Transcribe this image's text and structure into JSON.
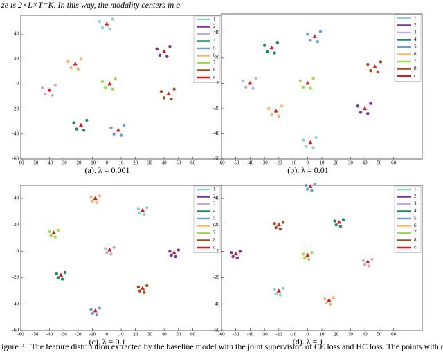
{
  "header_text": "ze is 2×L×T=K. In this way, the modality centers in a",
  "figure_caption": "igure 3 .  The feature distribution extracted by the baseline model with the joint supervision of CE loss and HC loss. The points with different colors s",
  "chart_data": [
    {
      "type": "scatter",
      "caption": "(a).  λ = 0.001",
      "xlim": [
        -60,
        80
      ],
      "ylim": [
        -60,
        55
      ],
      "xticks": [
        -60,
        -50,
        -40,
        -30,
        -20,
        -10,
        0,
        10,
        20,
        30,
        40,
        50,
        60
      ],
      "yticks": [
        -60,
        -40,
        -20,
        0,
        20,
        40
      ],
      "series": [
        {
          "name": "1",
          "color": "#8fd3c8",
          "x": [
            -5,
            4,
            2,
            -3
          ],
          "y": [
            50,
            52,
            44,
            45
          ]
        },
        {
          "name": "2",
          "color": "#7b3294",
          "x": [
            35,
            44,
            42,
            37
          ],
          "y": [
            28,
            30,
            22,
            23
          ]
        },
        {
          "name": "3",
          "color": "#c2b0d8",
          "x": [
            -45,
            -36,
            -38,
            -43
          ],
          "y": [
            -3,
            -1,
            -9,
            -8
          ]
        },
        {
          "name": "4",
          "color": "#1b8a5a",
          "x": [
            -23,
            -14,
            -16,
            -21
          ],
          "y": [
            -31,
            -29,
            -37,
            -36
          ]
        },
        {
          "name": "5",
          "color": "#6f9fd0",
          "x": [
            3,
            12,
            10,
            5
          ],
          "y": [
            -35,
            -33,
            -41,
            -40
          ]
        },
        {
          "name": "6",
          "color": "#fbb46a",
          "x": [
            -27,
            -18,
            -20,
            -25
          ],
          "y": [
            18,
            20,
            12,
            13
          ]
        },
        {
          "name": "7",
          "color": "#a6d854",
          "x": [
            -3,
            6,
            4,
            -1
          ],
          "y": [
            2,
            4,
            -4,
            -3
          ]
        },
        {
          "name": "8",
          "color": "#9c4f1c",
          "x": [
            38,
            47,
            45,
            40
          ],
          "y": [
            -6,
            -4,
            -12,
            -11
          ]
        },
        {
          "name": "c",
          "color": "#e8141c",
          "x": [
            0,
            40,
            -40,
            -18,
            8,
            -22,
            2,
            43
          ],
          "y": [
            48,
            26,
            -5,
            -33,
            -37,
            16,
            0,
            -8
          ]
        }
      ]
    },
    {
      "type": "scatter",
      "caption": "(b).  λ = 0.01",
      "xlim": [
        -60,
        80
      ],
      "ylim": [
        -60,
        55
      ],
      "xticks": [
        -60,
        -50,
        -40,
        -30,
        -20,
        -10,
        0,
        10,
        20,
        30,
        40,
        50,
        60
      ],
      "yticks": [
        -60,
        -40,
        -20,
        0,
        20,
        40
      ],
      "series": [
        {
          "name": "1",
          "color": "#8fd3c8",
          "x": [
            -3,
            6,
            4,
            -1
          ],
          "y": [
            -45,
            -43,
            -51,
            -50
          ]
        },
        {
          "name": "2",
          "color": "#7b3294",
          "x": [
            35,
            44,
            42,
            37
          ],
          "y": [
            -18,
            -16,
            -24,
            -23
          ]
        },
        {
          "name": "3",
          "color": "#c2b0d8",
          "x": [
            -45,
            -36,
            -38,
            -43
          ],
          "y": [
            2,
            4,
            -4,
            -3
          ]
        },
        {
          "name": "4",
          "color": "#1b8a5a",
          "x": [
            -30,
            -21,
            -23,
            -28
          ],
          "y": [
            30,
            32,
            24,
            25
          ]
        },
        {
          "name": "5",
          "color": "#6f9fd0",
          "x": [
            0,
            9,
            7,
            2
          ],
          "y": [
            39,
            41,
            33,
            34
          ]
        },
        {
          "name": "6",
          "color": "#fbb46a",
          "x": [
            -27,
            -18,
            -20,
            -25
          ],
          "y": [
            -20,
            -18,
            -26,
            -25
          ]
        },
        {
          "name": "7",
          "color": "#a6d854",
          "x": [
            -5,
            4,
            2,
            -3
          ],
          "y": [
            2,
            4,
            -4,
            -3
          ]
        },
        {
          "name": "8",
          "color": "#9c4f1c",
          "x": [
            42,
            51,
            49,
            44
          ],
          "y": [
            15,
            17,
            9,
            10
          ]
        },
        {
          "name": "c",
          "color": "#e8141c",
          "x": [
            2,
            40,
            -40,
            -25,
            5,
            -22,
            0,
            47
          ],
          "y": [
            -47,
            -20,
            0,
            28,
            37,
            -22,
            0,
            13
          ]
        }
      ]
    },
    {
      "type": "scatter",
      "caption": "(c).  λ = 0.1",
      "xlim": [
        -60,
        80
      ],
      "ylim": [
        -60,
        50
      ],
      "xticks": [
        -60,
        -50,
        -40,
        -30,
        -20,
        -10,
        0,
        10,
        20,
        30,
        40,
        50,
        60
      ],
      "yticks": [
        -60,
        -40,
        -20,
        0,
        20,
        40
      ],
      "series": [
        {
          "name": "1",
          "color": "#8fd3c8",
          "x": [
            22,
            28,
            26,
            23
          ],
          "y": [
            32,
            33,
            28,
            29
          ]
        },
        {
          "name": "2",
          "color": "#7b3294",
          "x": [
            44,
            50,
            48,
            45
          ],
          "y": [
            0,
            1,
            -4,
            -3
          ]
        },
        {
          "name": "3",
          "color": "#c2b0d8",
          "x": [
            -1,
            5,
            3,
            0
          ],
          "y": [
            2,
            3,
            -2,
            -1
          ]
        },
        {
          "name": "4",
          "color": "#1b8a5a",
          "x": [
            -35,
            -29,
            -31,
            -34
          ],
          "y": [
            -17,
            -16,
            -21,
            -20
          ]
        },
        {
          "name": "5",
          "color": "#6f9fd0",
          "x": [
            -11,
            -5,
            -7,
            -10
          ],
          "y": [
            -44,
            -43,
            -48,
            -47
          ]
        },
        {
          "name": "6",
          "color": "#fbb46a",
          "x": [
            -11,
            -5,
            -7,
            -10
          ],
          "y": [
            41,
            42,
            37,
            38
          ]
        },
        {
          "name": "7",
          "color": "#a6d854",
          "x": [
            -40,
            -34,
            -36,
            -39
          ],
          "y": [
            15,
            16,
            11,
            12
          ]
        },
        {
          "name": "8",
          "color": "#9c4f1c",
          "x": [
            22,
            28,
            26,
            23
          ],
          "y": [
            -27,
            -26,
            -31,
            -30
          ]
        },
        {
          "name": "c",
          "color": "#e8141c",
          "x": [
            25,
            47,
            2,
            -32,
            -8,
            -8,
            -37,
            25
          ],
          "y": [
            31,
            -1,
            1,
            -18,
            -45,
            40,
            14,
            -28
          ]
        }
      ]
    },
    {
      "type": "scatter",
      "caption": "(d).  λ = 1",
      "xlim": [
        -60,
        80
      ],
      "ylim": [
        -60,
        50
      ],
      "xticks": [
        -60,
        -50,
        -40,
        -30,
        -20,
        -10,
        0,
        10,
        20,
        30,
        40,
        50,
        60
      ],
      "yticks": [
        -60,
        -40,
        -20,
        0,
        20,
        40
      ],
      "series": [
        {
          "name": "1",
          "color": "#8fd3c8",
          "x": [
            -23,
            -17,
            -19,
            -22
          ],
          "y": [
            -29,
            -28,
            -33,
            -32
          ]
        },
        {
          "name": "2",
          "color": "#7b3294",
          "x": [
            -53,
            -47,
            -49,
            -52
          ],
          "y": [
            -1,
            0,
            -5,
            -4
          ]
        },
        {
          "name": "3",
          "color": "#c2b0d8",
          "x": [
            39,
            45,
            43,
            40
          ],
          "y": [
            -7,
            -6,
            -11,
            -10
          ]
        },
        {
          "name": "4",
          "color": "#1b8a5a",
          "x": [
            19,
            25,
            23,
            20
          ],
          "y": [
            23,
            24,
            19,
            20
          ]
        },
        {
          "name": "5",
          "color": "#6f9fd0",
          "x": [
            -1,
            5,
            3,
            0
          ],
          "y": [
            50,
            51,
            46,
            47
          ]
        },
        {
          "name": "6",
          "color": "#fbb46a",
          "x": [
            12,
            18,
            16,
            13
          ],
          "y": [
            -36,
            -35,
            -40,
            -39
          ]
        },
        {
          "name": "7",
          "color": "#a6d854",
          "x": [
            -3,
            3,
            1,
            -2
          ],
          "y": [
            -2,
            -1,
            -6,
            -5
          ]
        },
        {
          "name": "8",
          "color": "#9c4f1c",
          "x": [
            -23,
            -17,
            -19,
            -22
          ],
          "y": [
            21,
            22,
            17,
            18
          ]
        },
        {
          "name": "c",
          "color": "#e8141c",
          "x": [
            -20,
            -50,
            42,
            22,
            2,
            15,
            0,
            -20
          ],
          "y": [
            -30,
            -2,
            -8,
            22,
            49,
            -37,
            -3,
            20
          ]
        }
      ]
    }
  ]
}
